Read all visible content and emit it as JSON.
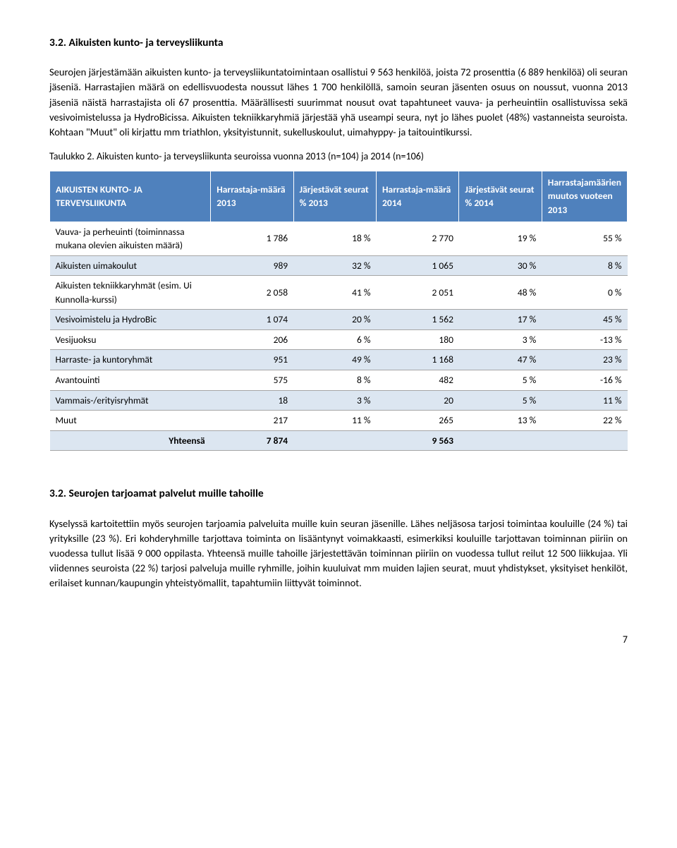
{
  "section1": {
    "title": "3.2. Aikuisten kunto- ja terveysliikunta",
    "para1": "Seurojen järjestämään aikuisten kunto- ja terveysliikuntatoimintaan osallistui 9 563 henkilöä, joista 72 prosenttia (6 889 henkilöä) oli seuran jäseniä. Harrastajien määrä on edellisvuodesta noussut lähes 1 700 henkilöllä, samoin seuran jäsenten osuus on noussut, vuonna 2013 jäseniä näistä harrastajista oli 67 prosenttia. Määrällisesti suurimmat nousut ovat tapahtuneet vauva- ja perheuintiin osallistuvissa sekä vesivoimistelussa ja HydroBicissa. Aikuisten tekniikkaryhmiä järjestää yhä useampi seura, nyt jo lähes puolet (48%) vastanneista seuroista. Kohtaan \"Muut\" oli kirjattu mm triathlon, yksityistunnit, sukelluskoulut, uimahyppy- ja taitouintikurssi.",
    "tableCaption": "Taulukko 2. Aikuisten kunto- ja terveysliikunta seuroissa vuonna 2013 (n=104) ja 2014 (n=106)"
  },
  "table": {
    "headers": {
      "c0": "AIKUISTEN KUNTO- JA TERVEYSLIIKUNTA",
      "c1": "Harrastaja-määrä 2013",
      "c2": "Järjestävät seurat % 2013",
      "c3": "Harrastaja-määrä 2014",
      "c4": "Järjestävät seurat % 2014",
      "c5": "Harrastajamäärien muutos vuoteen 2013"
    },
    "rows": [
      {
        "label": "Vauva- ja perheuinti (toiminnassa mukana olevien aikuisten määrä)",
        "v": [
          "1 786",
          "18 %",
          "2 770",
          "19 %",
          "55 %"
        ]
      },
      {
        "label": "Aikuisten uimakoulut",
        "v": [
          "989",
          "32 %",
          "1 065",
          "30 %",
          "8 %"
        ]
      },
      {
        "label": "Aikuisten tekniikkaryhmät (esim. Ui Kunnolla-kurssi)",
        "v": [
          "2 058",
          "41 %",
          "2 051",
          "48 %",
          "0 %"
        ]
      },
      {
        "label": "Vesivoimistelu ja HydroBic",
        "v": [
          "1 074",
          "20 %",
          "1 562",
          "17 %",
          "45 %"
        ]
      },
      {
        "label": "Vesijuoksu",
        "v": [
          "206",
          "6 %",
          "180",
          "3 %",
          "-13 %"
        ]
      },
      {
        "label": "Harraste- ja kuntoryhmät",
        "v": [
          "951",
          "49 %",
          "1 168",
          "47 %",
          "23 %"
        ]
      },
      {
        "label": "Avantouinti",
        "v": [
          "575",
          "8 %",
          "482",
          "5 %",
          "-16 %"
        ]
      },
      {
        "label": "Vammais-/erityisryhmät",
        "v": [
          "18",
          "3 %",
          "20",
          "5 %",
          "11 %"
        ]
      },
      {
        "label": "Muut",
        "v": [
          "217",
          "11 %",
          "265",
          "13 %",
          "22 %"
        ]
      }
    ],
    "totalLabel": "Yhteensä",
    "totals": [
      "7 874",
      "",
      "9 563",
      "",
      ""
    ]
  },
  "section2": {
    "title": "3.2. Seurojen tarjoamat palvelut muille tahoille",
    "para1": "Kyselyssä kartoitettiin myös seurojen tarjoamia palveluita muille kuin seuran jäsenille. Lähes neljäsosa tarjosi toimintaa kouluille (24 %) tai yrityksille (23 %). Eri kohderyhmille tarjottava toiminta on lisääntynyt voimakkaasti, esimerkiksi kouluille tarjottavan toiminnan piiriin on vuodessa tullut lisää 9 000 oppilasta. Yhteensä muille tahoille järjestettävän toiminnan piiriin on vuodessa tullut reilut 12 500 liikkujaa. Yli viidennes seuroista (22 %) tarjosi palveluja muille ryhmille, joihin kuuluivat mm muiden lajien seurat, muut yhdistykset, yksityiset henkilöt, erilaiset kunnan/kaupungin yhteistyömallit, tapahtumiin liittyvät toiminnot."
  },
  "pageNumber": "7",
  "colors": {
    "headerBg": "#4f81bd",
    "altRowBg": "#dce6f1",
    "borderColor": "#a6a6a6"
  }
}
